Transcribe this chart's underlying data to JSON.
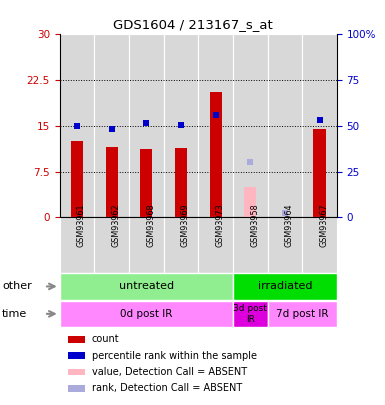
{
  "title": "GDS1604 / 213167_s_at",
  "samples": [
    "GSM93961",
    "GSM93962",
    "GSM93968",
    "GSM93969",
    "GSM93973",
    "GSM93958",
    "GSM93964",
    "GSM93967"
  ],
  "bar_values": [
    12.5,
    11.5,
    11.2,
    11.4,
    20.5,
    5.0,
    0.0,
    14.5
  ],
  "bar_colors": [
    "#cc0000",
    "#cc0000",
    "#cc0000",
    "#cc0000",
    "#cc0000",
    "#ffb6c1",
    "#aaaadd",
    "#cc0000"
  ],
  "rank_values": [
    50.0,
    48.0,
    51.5,
    50.5,
    56.0,
    30.0,
    2.5,
    53.0
  ],
  "rank_colors": [
    "#0000cc",
    "#0000cc",
    "#0000cc",
    "#0000cc",
    "#0000cc",
    "#aaaadd",
    "#aaaadd",
    "#0000cc"
  ],
  "ylim_left": [
    0,
    30
  ],
  "ylim_right": [
    0,
    100
  ],
  "yticks_left": [
    0,
    7.5,
    15,
    22.5,
    30
  ],
  "yticks_left_labels": [
    "0",
    "7.5",
    "15",
    "22.5",
    "30"
  ],
  "yticks_right": [
    0,
    25,
    50,
    75,
    100
  ],
  "yticks_right_labels": [
    "0",
    "25",
    "50",
    "75",
    "100%"
  ],
  "group_other": [
    {
      "label": "untreated",
      "start": 0,
      "end": 5,
      "color": "#90ee90"
    },
    {
      "label": "irradiated",
      "start": 5,
      "end": 8,
      "color": "#00dd00"
    }
  ],
  "group_time": [
    {
      "label": "0d post IR",
      "start": 0,
      "end": 5,
      "color": "#ff88ff"
    },
    {
      "label": "3d post\nIR",
      "start": 5,
      "end": 6,
      "color": "#dd00dd"
    },
    {
      "label": "7d post IR",
      "start": 6,
      "end": 8,
      "color": "#ff88ff"
    }
  ],
  "legend_items": [
    {
      "label": "count",
      "color": "#cc0000"
    },
    {
      "label": "percentile rank within the sample",
      "color": "#0000cc"
    },
    {
      "label": "value, Detection Call = ABSENT",
      "color": "#ffb6c1"
    },
    {
      "label": "rank, Detection Call = ABSENT",
      "color": "#aaaadd"
    }
  ],
  "other_label": "other",
  "time_label": "time",
  "tick_label_color_left": "#cc0000",
  "tick_label_color_right": "#0000cc",
  "col_bg": "#d8d8d8",
  "plot_bg": "#ffffff"
}
